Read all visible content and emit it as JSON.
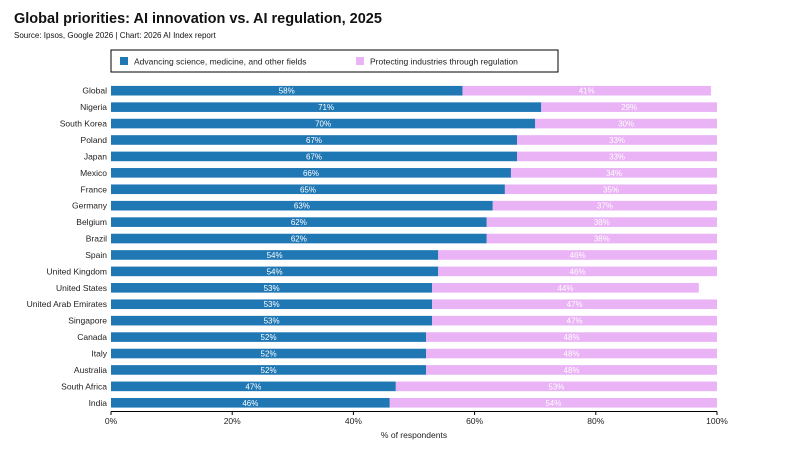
{
  "title": "Global priorities: AI innovation vs. AI regulation, 2025",
  "source": "Source: Ipsos, Google 2026 | Chart: 2026 AI Index report",
  "colors": {
    "advancing": "#1f77b4",
    "protecting": "#e9b3f5",
    "text": "#222222"
  },
  "chart_data": {
    "type": "bar",
    "orientation": "horizontal",
    "stacked": true,
    "categories": [
      "Global",
      "Nigeria",
      "South Korea",
      "Poland",
      "Japan",
      "Mexico",
      "France",
      "Germany",
      "Belgium",
      "Brazil",
      "Spain",
      "United Kingdom",
      "United States",
      "United Arab Emirates",
      "Singapore",
      "Canada",
      "Italy",
      "Australia",
      "South Africa",
      "India"
    ],
    "series": [
      {
        "name": "Advancing science, medicine, and other fields",
        "values": [
          58,
          71,
          70,
          67,
          67,
          66,
          65,
          63,
          62,
          62,
          54,
          54,
          53,
          53,
          53,
          52,
          52,
          52,
          47,
          46
        ]
      },
      {
        "name": "Protecting industries through regulation",
        "values": [
          41,
          29,
          30,
          33,
          33,
          34,
          35,
          37,
          38,
          38,
          46,
          46,
          44,
          47,
          47,
          48,
          48,
          48,
          53,
          54
        ]
      }
    ],
    "xlim": [
      0,
      100
    ],
    "xticks": [
      "0%",
      "20%",
      "40%",
      "60%",
      "80%",
      "100%"
    ],
    "xlabel": "% of respondents",
    "legend_position": "top"
  }
}
